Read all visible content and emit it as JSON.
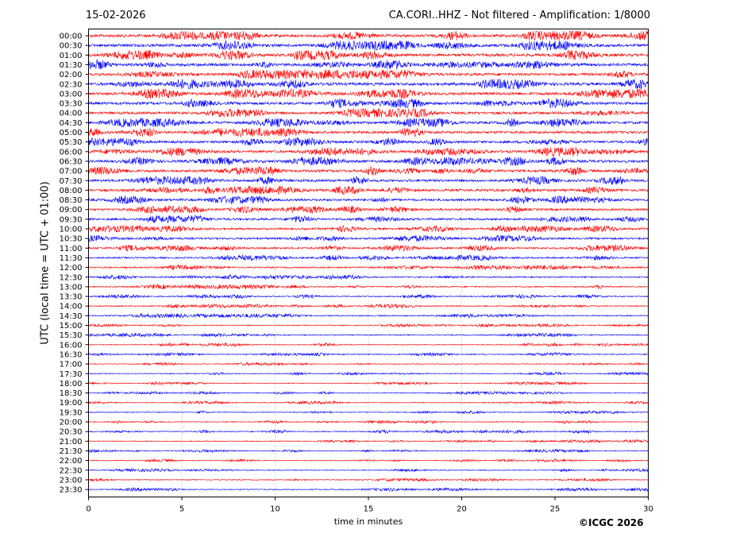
{
  "header": {
    "date": "15-02-2026",
    "title": "CA.CORI..HHZ - Not filtered - Amplification: 1/8000"
  },
  "footer": {
    "copyright": "©ICGC 2026"
  },
  "chart_data": {
    "type": "line",
    "title": "CA.CORI..HHZ - Not filtered - Amplification: 1/8000",
    "xlabel": "time in minutes",
    "ylabel": "UTC (local time = UTC + 01:00)",
    "xlim": [
      0,
      30
    ],
    "x_ticks": [
      0,
      5,
      10,
      15,
      20,
      25,
      30
    ],
    "grid": "vertical dotted",
    "trace_colors": [
      "#ff0000",
      "#0000ff"
    ],
    "rows": [
      "00:00",
      "00:30",
      "01:00",
      "01:30",
      "02:00",
      "02:30",
      "03:00",
      "03:30",
      "04:00",
      "04:30",
      "05:00",
      "05:30",
      "06:00",
      "06:30",
      "07:00",
      "07:30",
      "08:00",
      "08:30",
      "09:00",
      "09:30",
      "10:00",
      "10:30",
      "11:00",
      "11:30",
      "12:00",
      "12:30",
      "13:00",
      "13:30",
      "14:00",
      "14:30",
      "15:00",
      "15:30",
      "16:00",
      "16:30",
      "17:00",
      "17:30",
      "18:00",
      "18:30",
      "19:00",
      "19:30",
      "20:00",
      "20:30",
      "21:00",
      "21:30",
      "22:00",
      "22:30",
      "23:00",
      "23:30"
    ],
    "amplitude_profile": [
      1.0,
      1.0,
      1.0,
      1.0,
      0.95,
      1.0,
      1.0,
      0.95,
      0.9,
      0.9,
      0.9,
      0.85,
      0.9,
      0.9,
      0.9,
      0.85,
      0.85,
      0.8,
      0.75,
      0.75,
      0.7,
      0.65,
      0.65,
      0.55,
      0.5,
      0.45,
      0.45,
      0.4,
      0.4,
      0.4,
      0.35,
      0.35,
      0.35,
      0.35,
      0.3,
      0.3,
      0.3,
      0.3,
      0.3,
      0.3,
      0.3,
      0.35,
      0.3,
      0.3,
      0.3,
      0.3,
      0.3,
      0.35
    ]
  }
}
